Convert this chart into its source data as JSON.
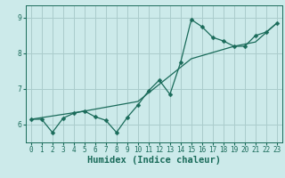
{
  "xlabel": "Humidex (Indice chaleur)",
  "bg_color": "#cceaea",
  "grid_color": "#aacccc",
  "line_color": "#1a6b5a",
  "xlim": [
    -0.5,
    23.5
  ],
  "ylim": [
    5.5,
    9.35
  ],
  "yticks": [
    6,
    7,
    8,
    9
  ],
  "xticks": [
    0,
    1,
    2,
    3,
    4,
    5,
    6,
    7,
    8,
    9,
    10,
    11,
    12,
    13,
    14,
    15,
    16,
    17,
    18,
    19,
    20,
    21,
    22,
    23
  ],
  "jagged_x": [
    0,
    1,
    2,
    3,
    4,
    5,
    6,
    7,
    8,
    9,
    10,
    11,
    12,
    13,
    14,
    15,
    16,
    17,
    18,
    19,
    20,
    21,
    22,
    23
  ],
  "jagged_y": [
    6.15,
    6.15,
    5.78,
    6.18,
    6.32,
    6.38,
    6.22,
    6.12,
    5.78,
    6.2,
    6.55,
    6.95,
    7.25,
    6.85,
    7.75,
    8.95,
    8.75,
    8.45,
    8.35,
    8.2,
    8.2,
    8.5,
    8.6,
    8.85
  ],
  "trend_x": [
    0,
    5,
    10,
    15,
    19,
    21,
    23
  ],
  "trend_y": [
    6.15,
    6.38,
    6.65,
    7.85,
    8.2,
    8.32,
    8.85
  ],
  "marker_size": 2.5,
  "line_width": 0.9,
  "tick_fontsize": 5.5,
  "xlabel_fontsize": 7.5
}
